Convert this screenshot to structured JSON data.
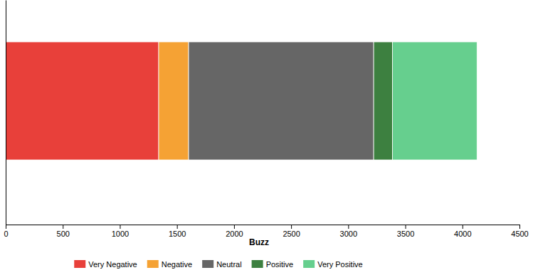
{
  "chart_data": {
    "type": "bar",
    "orientation": "horizontal",
    "stacked": true,
    "legend": "bottom",
    "x_label": "Buzz",
    "categories": [
      null
    ],
    "series": [
      {
        "name": "Very Negative",
        "color": "#e8403a",
        "values": [
          1340
        ]
      },
      {
        "name": "Negative",
        "color": "#f5a234",
        "values": [
          262
        ]
      },
      {
        "name": "Neutral",
        "color": "#666666",
        "values": [
          1621
        ]
      },
      {
        "name": "Positive",
        "color": "#3d8040",
        "values": [
          165
        ]
      },
      {
        "name": "Very Positive",
        "color": "#66cf8e",
        "values": [
          740
        ]
      }
    ],
    "xlim": [
      0,
      4500
    ],
    "xticks": [
      0,
      500,
      1000,
      1500,
      2000,
      2500,
      3000,
      3500,
      4000,
      4500
    ]
  }
}
